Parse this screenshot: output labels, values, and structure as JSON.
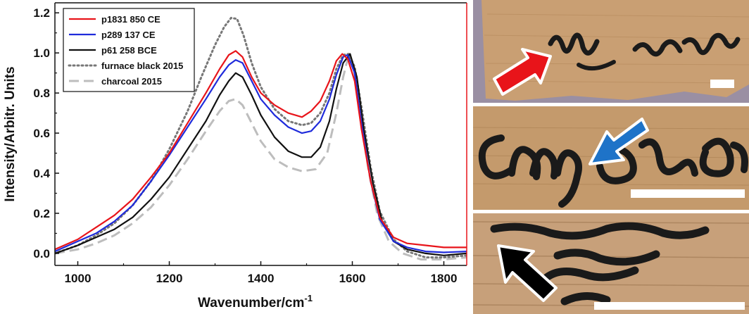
{
  "chart_data": {
    "type": "line",
    "xlabel": "Wavenumber/cm",
    "xlabel_superscript": "-1",
    "ylabel": "Intensity/Arbitr. Units",
    "xlim": [
      950,
      1850
    ],
    "ylim": [
      -0.06,
      1.25
    ],
    "x_ticks": [
      "1000",
      "1200",
      "1400",
      "1600",
      "1800"
    ],
    "y_ticks": [
      "0.0",
      "0.2",
      "0.4",
      "0.6",
      "0.8",
      "1.0",
      "1.2"
    ],
    "grid": false,
    "legend_position": "top-left",
    "series": [
      {
        "name": "p1831 850 CE",
        "color": "#e8141a",
        "style": "solid",
        "points": [
          [
            950,
            0.02
          ],
          [
            1000,
            0.07
          ],
          [
            1040,
            0.13
          ],
          [
            1080,
            0.19
          ],
          [
            1120,
            0.27
          ],
          [
            1160,
            0.38
          ],
          [
            1200,
            0.5
          ],
          [
            1240,
            0.65
          ],
          [
            1280,
            0.8
          ],
          [
            1310,
            0.92
          ],
          [
            1330,
            0.99
          ],
          [
            1345,
            1.01
          ],
          [
            1360,
            0.98
          ],
          [
            1380,
            0.88
          ],
          [
            1400,
            0.8
          ],
          [
            1430,
            0.74
          ],
          [
            1460,
            0.7
          ],
          [
            1490,
            0.68
          ],
          [
            1510,
            0.71
          ],
          [
            1530,
            0.76
          ],
          [
            1550,
            0.86
          ],
          [
            1565,
            0.96
          ],
          [
            1578,
            0.995
          ],
          [
            1590,
            0.97
          ],
          [
            1605,
            0.86
          ],
          [
            1620,
            0.62
          ],
          [
            1640,
            0.36
          ],
          [
            1660,
            0.18
          ],
          [
            1690,
            0.08
          ],
          [
            1720,
            0.05
          ],
          [
            1760,
            0.04
          ],
          [
            1800,
            0.03
          ],
          [
            1850,
            0.03
          ]
        ]
      },
      {
        "name": "p289 137 CE",
        "color": "#1f2bdb",
        "style": "solid",
        "points": [
          [
            950,
            0.01
          ],
          [
            1000,
            0.06
          ],
          [
            1040,
            0.1
          ],
          [
            1080,
            0.16
          ],
          [
            1120,
            0.24
          ],
          [
            1160,
            0.36
          ],
          [
            1200,
            0.49
          ],
          [
            1240,
            0.63
          ],
          [
            1280,
            0.77
          ],
          [
            1310,
            0.88
          ],
          [
            1330,
            0.94
          ],
          [
            1345,
            0.965
          ],
          [
            1360,
            0.95
          ],
          [
            1380,
            0.86
          ],
          [
            1400,
            0.77
          ],
          [
            1430,
            0.69
          ],
          [
            1460,
            0.63
          ],
          [
            1490,
            0.6
          ],
          [
            1510,
            0.61
          ],
          [
            1530,
            0.66
          ],
          [
            1550,
            0.77
          ],
          [
            1565,
            0.89
          ],
          [
            1580,
            0.98
          ],
          [
            1590,
            0.99
          ],
          [
            1605,
            0.9
          ],
          [
            1620,
            0.65
          ],
          [
            1640,
            0.36
          ],
          [
            1660,
            0.17
          ],
          [
            1690,
            0.06
          ],
          [
            1720,
            0.03
          ],
          [
            1760,
            0.01
          ],
          [
            1800,
            0.005
          ],
          [
            1850,
            0.01
          ]
        ]
      },
      {
        "name": "p61 258 BCE",
        "color": "#111111",
        "style": "solid",
        "points": [
          [
            950,
            0.0
          ],
          [
            1000,
            0.04
          ],
          [
            1040,
            0.08
          ],
          [
            1080,
            0.12
          ],
          [
            1120,
            0.18
          ],
          [
            1160,
            0.27
          ],
          [
            1200,
            0.38
          ],
          [
            1240,
            0.52
          ],
          [
            1280,
            0.66
          ],
          [
            1310,
            0.79
          ],
          [
            1330,
            0.86
          ],
          [
            1345,
            0.9
          ],
          [
            1360,
            0.88
          ],
          [
            1380,
            0.79
          ],
          [
            1400,
            0.69
          ],
          [
            1430,
            0.58
          ],
          [
            1460,
            0.51
          ],
          [
            1490,
            0.48
          ],
          [
            1510,
            0.48
          ],
          [
            1530,
            0.53
          ],
          [
            1550,
            0.66
          ],
          [
            1565,
            0.82
          ],
          [
            1580,
            0.95
          ],
          [
            1595,
            0.995
          ],
          [
            1610,
            0.88
          ],
          [
            1625,
            0.62
          ],
          [
            1645,
            0.35
          ],
          [
            1665,
            0.16
          ],
          [
            1690,
            0.06
          ],
          [
            1720,
            0.02
          ],
          [
            1760,
            0.0
          ],
          [
            1800,
            -0.01
          ],
          [
            1850,
            0.0
          ]
        ]
      },
      {
        "name": "furnace black 2015",
        "color": "#777777",
        "style": "dotted",
        "points": [
          [
            950,
            0.0
          ],
          [
            1000,
            0.04
          ],
          [
            1040,
            0.09
          ],
          [
            1080,
            0.15
          ],
          [
            1120,
            0.24
          ],
          [
            1160,
            0.36
          ],
          [
            1200,
            0.52
          ],
          [
            1240,
            0.71
          ],
          [
            1270,
            0.88
          ],
          [
            1300,
            1.04
          ],
          [
            1320,
            1.13
          ],
          [
            1335,
            1.175
          ],
          [
            1348,
            1.17
          ],
          [
            1362,
            1.09
          ],
          [
            1380,
            0.95
          ],
          [
            1400,
            0.83
          ],
          [
            1430,
            0.72
          ],
          [
            1460,
            0.66
          ],
          [
            1490,
            0.64
          ],
          [
            1510,
            0.65
          ],
          [
            1530,
            0.7
          ],
          [
            1550,
            0.8
          ],
          [
            1565,
            0.92
          ],
          [
            1580,
            0.99
          ],
          [
            1592,
            0.995
          ],
          [
            1605,
            0.93
          ],
          [
            1620,
            0.73
          ],
          [
            1640,
            0.43
          ],
          [
            1660,
            0.21
          ],
          [
            1690,
            0.07
          ],
          [
            1720,
            0.01
          ],
          [
            1760,
            -0.02
          ],
          [
            1800,
            -0.02
          ],
          [
            1850,
            -0.01
          ]
        ]
      },
      {
        "name": "charcoal 2015",
        "color": "#bdbdbd",
        "style": "dashed",
        "points": [
          [
            950,
            0.0
          ],
          [
            1000,
            0.02
          ],
          [
            1040,
            0.05
          ],
          [
            1080,
            0.09
          ],
          [
            1120,
            0.15
          ],
          [
            1160,
            0.23
          ],
          [
            1200,
            0.34
          ],
          [
            1240,
            0.47
          ],
          [
            1280,
            0.61
          ],
          [
            1310,
            0.71
          ],
          [
            1330,
            0.76
          ],
          [
            1345,
            0.77
          ],
          [
            1360,
            0.74
          ],
          [
            1380,
            0.65
          ],
          [
            1400,
            0.56
          ],
          [
            1430,
            0.47
          ],
          [
            1460,
            0.43
          ],
          [
            1490,
            0.41
          ],
          [
            1520,
            0.42
          ],
          [
            1545,
            0.5
          ],
          [
            1565,
            0.7
          ],
          [
            1580,
            0.88
          ],
          [
            1592,
            0.99
          ],
          [
            1602,
            0.94
          ],
          [
            1615,
            0.72
          ],
          [
            1635,
            0.42
          ],
          [
            1655,
            0.19
          ],
          [
            1680,
            0.06
          ],
          [
            1710,
            0.0
          ],
          [
            1750,
            -0.03
          ],
          [
            1800,
            -0.03
          ],
          [
            1850,
            -0.02
          ]
        ]
      }
    ]
  },
  "panels": {
    "frame_color": "#e8141a",
    "papyrus_color": "#c99f73",
    "ink_color": "#1a1a1a",
    "arrows": [
      {
        "panel": "top",
        "color": "#e8141a",
        "icon": "arrow-up-right"
      },
      {
        "panel": "middle",
        "color": "#1e73c8",
        "icon": "arrow-down-left"
      },
      {
        "panel": "bottom",
        "color": "#000000",
        "icon": "arrow-up-left"
      }
    ]
  }
}
